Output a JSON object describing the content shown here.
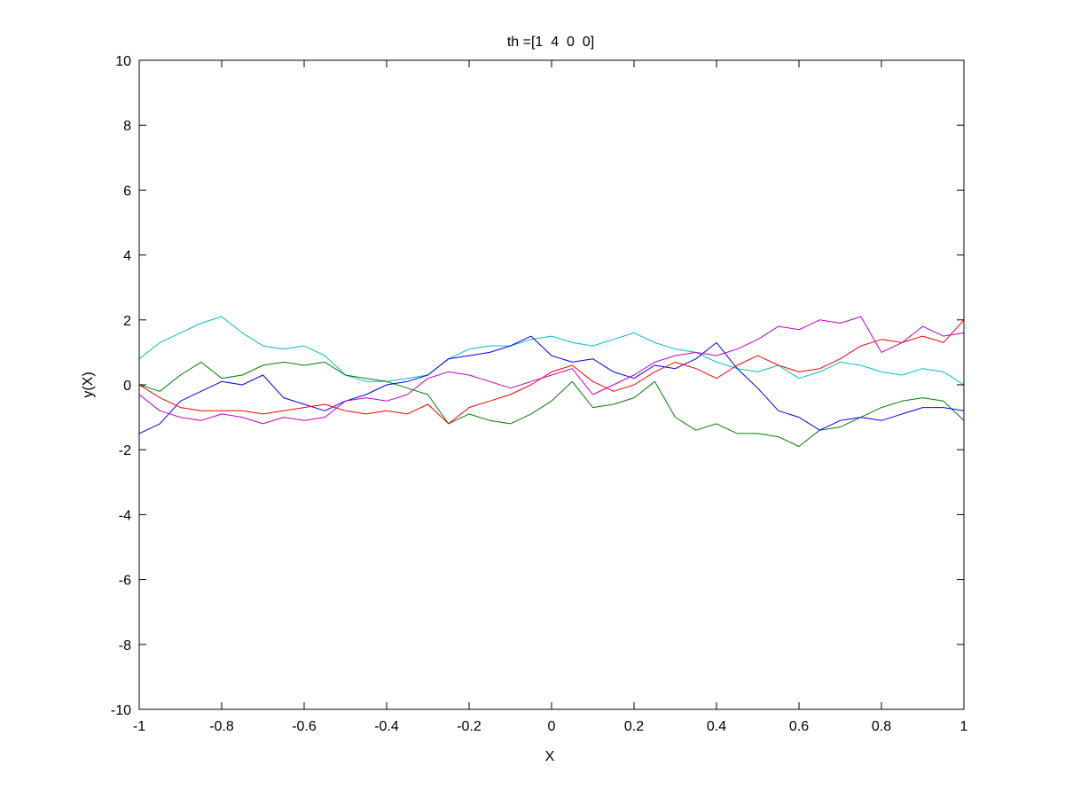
{
  "chart_data": {
    "type": "line",
    "title": "th =[1  4  0  0]",
    "xlabel": "X",
    "ylabel": "y(X)",
    "xlim": [
      -1,
      1
    ],
    "ylim": [
      -10,
      10
    ],
    "xticks": [
      -1,
      -0.8,
      -0.6,
      -0.4,
      -0.2,
      0,
      0.2,
      0.4,
      0.6,
      0.8,
      1
    ],
    "xtick_labels": [
      "-1",
      "-0.8",
      "-0.6",
      "-0.4",
      "-0.2",
      "0",
      "0.2",
      "0.4",
      "0.6",
      "0.8",
      "1"
    ],
    "yticks": [
      -10,
      -8,
      -6,
      -4,
      -2,
      0,
      2,
      4,
      6,
      8,
      10
    ],
    "ytick_labels": [
      "-10",
      "-8",
      "-6",
      "-4",
      "-2",
      "0",
      "2",
      "4",
      "6",
      "8",
      "10"
    ],
    "grid": false,
    "legend": "none",
    "series": [
      {
        "color": "#00bfbf",
        "x": [
          -1,
          -0.95,
          -0.9,
          -0.85,
          -0.8,
          -0.75,
          -0.7,
          -0.65,
          -0.6,
          -0.55,
          -0.5,
          -0.45,
          -0.4,
          -0.35,
          -0.3,
          -0.25,
          -0.2,
          -0.15,
          -0.1,
          -0.05,
          0,
          0.05,
          0.1,
          0.15,
          0.2,
          0.25,
          0.3,
          0.35,
          0.4,
          0.45,
          0.5,
          0.55,
          0.6,
          0.65,
          0.7,
          0.75,
          0.8,
          0.85,
          0.9,
          0.95,
          1
        ],
        "y": [
          0.8,
          1.3,
          1.6,
          1.9,
          2.1,
          1.6,
          1.2,
          1.1,
          1.2,
          0.9,
          0.3,
          0.1,
          0.1,
          0.2,
          0.3,
          0.8,
          1.1,
          1.2,
          1.2,
          1.4,
          1.5,
          1.3,
          1.2,
          1.4,
          1.6,
          1.3,
          1.1,
          1.0,
          0.7,
          0.5,
          0.4,
          0.6,
          0.2,
          0.4,
          0.7,
          0.6,
          0.4,
          0.3,
          0.5,
          0.4,
          0.0
        ]
      },
      {
        "color": "#007f00",
        "x": [
          -1,
          -0.95,
          -0.9,
          -0.85,
          -0.8,
          -0.75,
          -0.7,
          -0.65,
          -0.6,
          -0.55,
          -0.5,
          -0.45,
          -0.4,
          -0.35,
          -0.3,
          -0.25,
          -0.2,
          -0.15,
          -0.1,
          -0.05,
          0,
          0.05,
          0.1,
          0.15,
          0.2,
          0.25,
          0.3,
          0.35,
          0.4,
          0.45,
          0.5,
          0.55,
          0.6,
          0.65,
          0.7,
          0.75,
          0.8,
          0.85,
          0.9,
          0.95,
          1
        ],
        "y": [
          0.0,
          -0.2,
          0.3,
          0.7,
          0.2,
          0.3,
          0.6,
          0.7,
          0.6,
          0.7,
          0.3,
          0.2,
          0.1,
          -0.1,
          -0.3,
          -1.2,
          -0.9,
          -1.1,
          -1.2,
          -0.9,
          -0.5,
          0.1,
          -0.7,
          -0.6,
          -0.4,
          0.1,
          -1.0,
          -1.4,
          -1.2,
          -1.5,
          -1.5,
          -1.6,
          -1.9,
          -1.4,
          -1.3,
          -1.0,
          -0.7,
          -0.5,
          -0.4,
          -0.5,
          -1.1
        ]
      },
      {
        "color": "#0000ff",
        "x": [
          -1,
          -0.95,
          -0.9,
          -0.85,
          -0.8,
          -0.75,
          -0.7,
          -0.65,
          -0.6,
          -0.55,
          -0.5,
          -0.45,
          -0.4,
          -0.35,
          -0.3,
          -0.25,
          -0.2,
          -0.15,
          -0.1,
          -0.05,
          0,
          0.05,
          0.1,
          0.15,
          0.2,
          0.25,
          0.3,
          0.35,
          0.4,
          0.45,
          0.5,
          0.55,
          0.6,
          0.65,
          0.7,
          0.75,
          0.8,
          0.85,
          0.9,
          0.95,
          1
        ],
        "y": [
          -1.5,
          -1.2,
          -0.5,
          -0.2,
          0.1,
          0.0,
          0.3,
          -0.4,
          -0.6,
          -0.8,
          -0.5,
          -0.3,
          0.0,
          0.1,
          0.3,
          0.8,
          0.9,
          1.0,
          1.2,
          1.5,
          0.9,
          0.7,
          0.8,
          0.4,
          0.2,
          0.6,
          0.5,
          0.8,
          1.3,
          0.5,
          -0.1,
          -0.8,
          -1.0,
          -1.4,
          -1.1,
          -1.0,
          -1.1,
          -0.9,
          -0.7,
          -0.7,
          -0.8
        ]
      },
      {
        "color": "#ff0000",
        "x": [
          -1,
          -0.95,
          -0.9,
          -0.85,
          -0.8,
          -0.75,
          -0.7,
          -0.65,
          -0.6,
          -0.55,
          -0.5,
          -0.45,
          -0.4,
          -0.35,
          -0.3,
          -0.25,
          -0.2,
          -0.15,
          -0.1,
          -0.05,
          0,
          0.05,
          0.1,
          0.15,
          0.2,
          0.25,
          0.3,
          0.35,
          0.4,
          0.45,
          0.5,
          0.55,
          0.6,
          0.65,
          0.7,
          0.75,
          0.8,
          0.85,
          0.9,
          0.95,
          1
        ],
        "y": [
          0.0,
          -0.4,
          -0.7,
          -0.8,
          -0.8,
          -0.8,
          -0.9,
          -0.8,
          -0.7,
          -0.6,
          -0.8,
          -0.9,
          -0.8,
          -0.9,
          -0.6,
          -1.2,
          -0.7,
          -0.5,
          -0.3,
          0.0,
          0.4,
          0.6,
          0.1,
          -0.2,
          0.0,
          0.4,
          0.7,
          0.5,
          0.2,
          0.6,
          0.9,
          0.6,
          0.4,
          0.5,
          0.8,
          1.2,
          1.4,
          1.3,
          1.5,
          1.3,
          2.0
        ]
      },
      {
        "color": "#bf00bf",
        "x": [
          -1,
          -0.95,
          -0.9,
          -0.85,
          -0.8,
          -0.75,
          -0.7,
          -0.65,
          -0.6,
          -0.55,
          -0.5,
          -0.45,
          -0.4,
          -0.35,
          -0.3,
          -0.25,
          -0.2,
          -0.15,
          -0.1,
          -0.05,
          0,
          0.05,
          0.1,
          0.15,
          0.2,
          0.25,
          0.3,
          0.35,
          0.4,
          0.45,
          0.5,
          0.55,
          0.6,
          0.65,
          0.7,
          0.75,
          0.8,
          0.85,
          0.9,
          0.95,
          1
        ],
        "y": [
          -0.3,
          -0.8,
          -1.0,
          -1.1,
          -0.9,
          -1.0,
          -1.2,
          -1.0,
          -1.1,
          -1.0,
          -0.5,
          -0.4,
          -0.5,
          -0.3,
          0.2,
          0.4,
          0.3,
          0.1,
          -0.1,
          0.1,
          0.3,
          0.5,
          -0.3,
          0.0,
          0.3,
          0.7,
          0.9,
          1.0,
          0.9,
          1.1,
          1.4,
          1.8,
          1.7,
          2.0,
          1.9,
          2.1,
          1.0,
          1.3,
          1.8,
          1.5,
          1.6
        ]
      }
    ]
  }
}
